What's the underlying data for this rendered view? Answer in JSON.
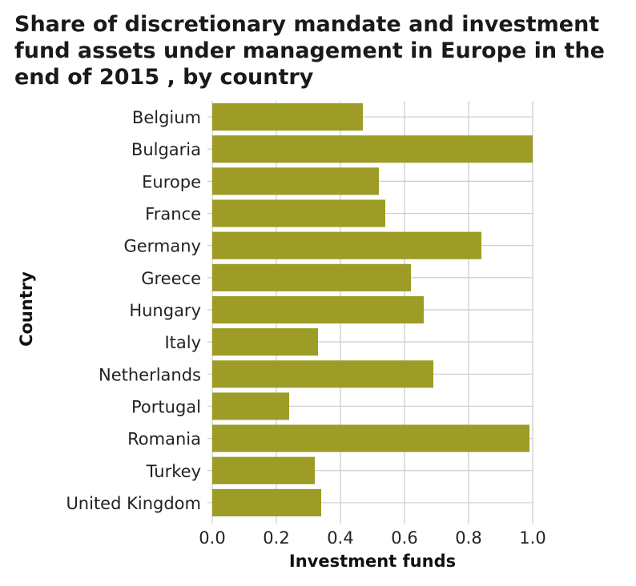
{
  "chart_data": {
    "type": "bar",
    "orientation": "horizontal",
    "title": "Share of discretionary mandate and investment fund assets under management in Europe in the end of 2015 , by country",
    "xlabel": "Investment funds",
    "ylabel": "Country",
    "categories": [
      "Belgium",
      "Bulgaria",
      "Europe",
      "France",
      "Germany",
      "Greece",
      "Hungary",
      "Italy",
      "Netherlands",
      "Portugal",
      "Romania",
      "Turkey",
      "United Kingdom"
    ],
    "values": [
      0.47,
      1.0,
      0.52,
      0.54,
      0.84,
      0.62,
      0.66,
      0.33,
      0.69,
      0.24,
      0.99,
      0.32,
      0.34
    ],
    "xlim": [
      0,
      1.0
    ],
    "xticks": [
      "0.0",
      "0.2",
      "0.4",
      "0.6",
      "0.8",
      "1.0"
    ],
    "grid": true,
    "bar_color": "#9c9c26",
    "grid_color": "#cccccc"
  }
}
